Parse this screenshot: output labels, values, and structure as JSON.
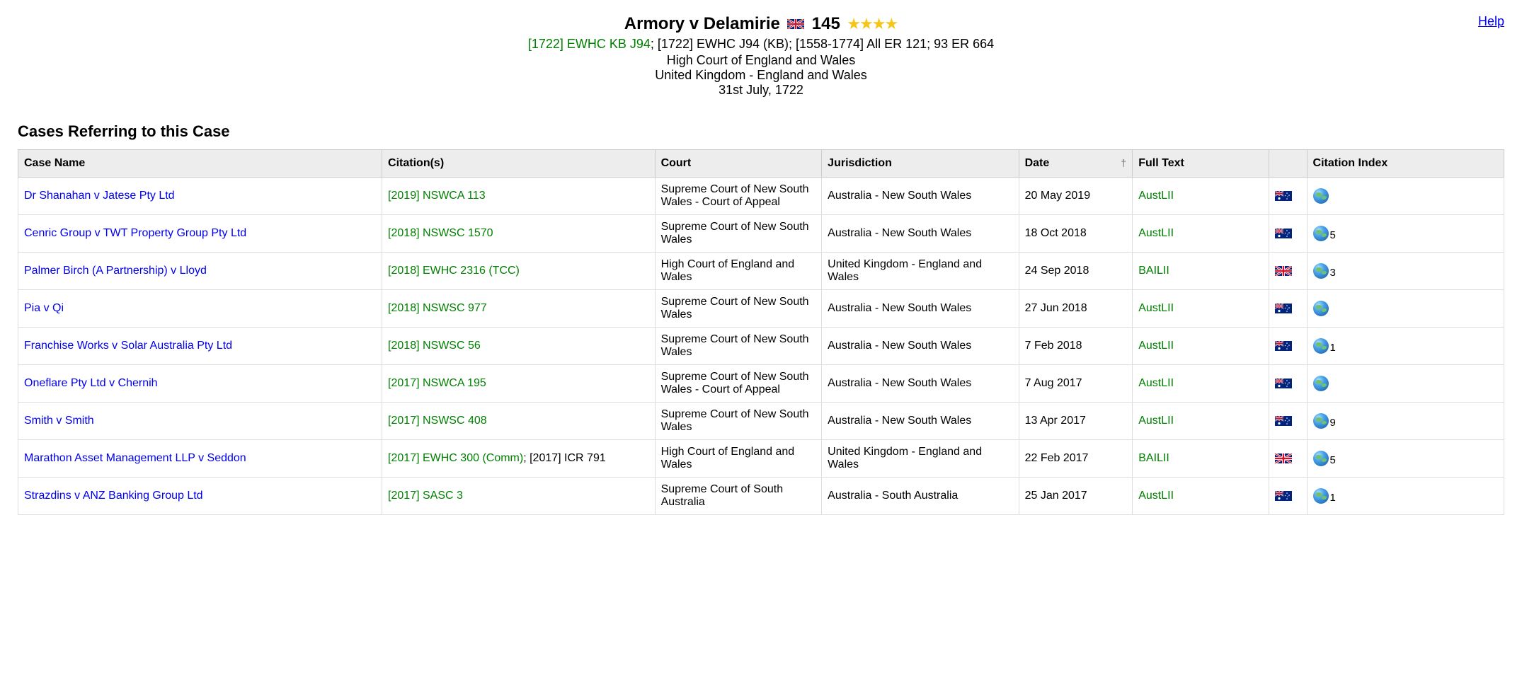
{
  "help_label": "Help",
  "header": {
    "title": "Armory v Delamirie",
    "count": "145",
    "stars": 4,
    "citation_primary": "[1722] EWHC KB J94",
    "citation_rest": "; [1722] EWHC J94 (KB); [1558-1774] All ER 121; 93 ER 664",
    "court": "High Court of England and Wales",
    "jurisdiction": "United Kingdom - England and Wales",
    "date": "31st July, 1722"
  },
  "section_heading": "Cases Referring to this Case",
  "columns": {
    "name": "Case Name",
    "citation": "Citation(s)",
    "court": "Court",
    "jurisdiction": "Jurisdiction",
    "date": "Date",
    "fulltext": "Full Text",
    "citation_index": "Citation Index"
  },
  "rows": [
    {
      "name": "Dr Shanahan v Jatese Pty Ltd",
      "citation_link": "[2019] NSWCA 113",
      "citation_plain": "",
      "court": "Supreme Court of New South Wales - Court of Appeal",
      "jurisdiction": "Australia - New South Wales",
      "date": "20 May 2019",
      "fulltext": "AustLII",
      "flag": "au",
      "ci": ""
    },
    {
      "name": "Cenric Group v TWT Property Group Pty Ltd",
      "citation_link": "[2018] NSWSC 1570",
      "citation_plain": "",
      "court": "Supreme Court of New South Wales",
      "jurisdiction": "Australia - New South Wales",
      "date": "18 Oct 2018",
      "fulltext": "AustLII",
      "flag": "au",
      "ci": "5"
    },
    {
      "name": "Palmer Birch (A Partnership) v Lloyd",
      "citation_link": "[2018] EWHC 2316 (TCC)",
      "citation_plain": "",
      "court": "High Court of England and Wales",
      "jurisdiction": "United Kingdom - England and Wales",
      "date": "24 Sep 2018",
      "fulltext": "BAILII",
      "flag": "uk",
      "ci": "3"
    },
    {
      "name": "Pia v Qi",
      "citation_link": "[2018] NSWSC 977",
      "citation_plain": "",
      "court": "Supreme Court of New South Wales",
      "jurisdiction": "Australia - New South Wales",
      "date": "27 Jun 2018",
      "fulltext": "AustLII",
      "flag": "au",
      "ci": ""
    },
    {
      "name": "Franchise Works v Solar Australia Pty Ltd",
      "citation_link": "[2018] NSWSC 56",
      "citation_plain": "",
      "court": "Supreme Court of New South Wales",
      "jurisdiction": "Australia - New South Wales",
      "date": "7 Feb 2018",
      "fulltext": "AustLII",
      "flag": "au",
      "ci": "1"
    },
    {
      "name": "Oneflare Pty Ltd v Chernih",
      "citation_link": "[2017] NSWCA 195",
      "citation_plain": "",
      "court": "Supreme Court of New South Wales - Court of Appeal",
      "jurisdiction": "Australia - New South Wales",
      "date": "7 Aug 2017",
      "fulltext": "AustLII",
      "flag": "au",
      "ci": ""
    },
    {
      "name": "Smith v Smith",
      "citation_link": "[2017] NSWSC 408",
      "citation_plain": "",
      "court": "Supreme Court of New South Wales",
      "jurisdiction": "Australia - New South Wales",
      "date": "13 Apr 2017",
      "fulltext": "AustLII",
      "flag": "au",
      "ci": "9"
    },
    {
      "name": "Marathon Asset Management LLP v Seddon",
      "citation_link": "[2017] EWHC 300 (Comm)",
      "citation_plain": "; [2017] ICR 791",
      "court": "High Court of England and Wales",
      "jurisdiction": "United Kingdom - England and Wales",
      "date": "22 Feb 2017",
      "fulltext": "BAILII",
      "flag": "uk",
      "ci": "5"
    },
    {
      "name": "Strazdins v ANZ Banking Group Ltd",
      "citation_link": "[2017] SASC 3",
      "citation_plain": "",
      "court": "Supreme Court of South Australia",
      "jurisdiction": "Australia - South Australia",
      "date": "25 Jan 2017",
      "fulltext": "AustLII",
      "flag": "au",
      "ci": "1"
    }
  ]
}
